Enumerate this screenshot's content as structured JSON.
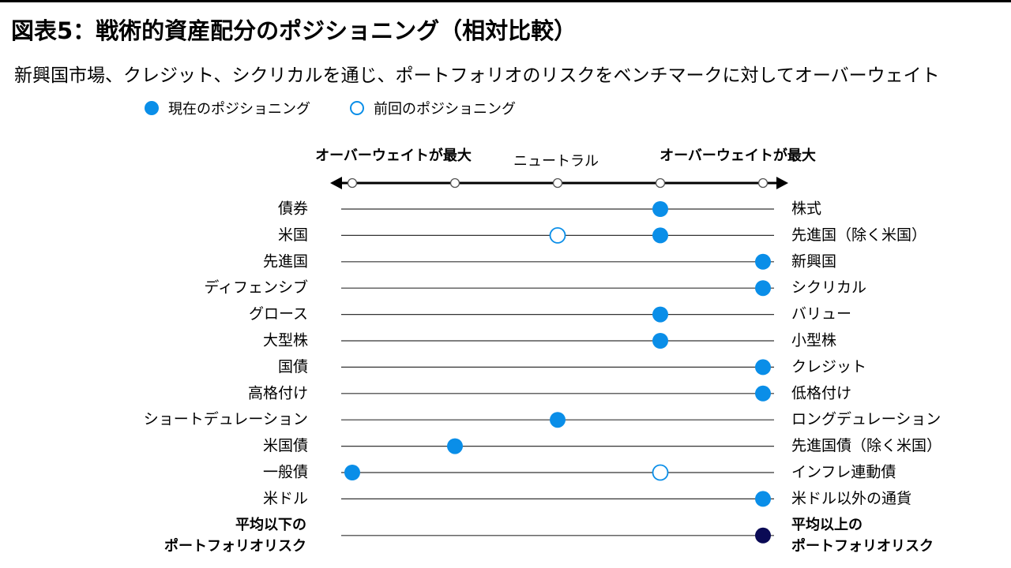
{
  "title": "図表5：戦術的資産配分のポジショニング（相対比較）",
  "subtitle": "新興国市場、クレジット、シクリカルを通じ、ポートフォリオのリスクをベンチマークに対してオーバーウェイト",
  "legend": {
    "current": "現在のポジショニング",
    "previous": "前回のポジショニング"
  },
  "colors": {
    "current": "#0a8ee8",
    "previous_stroke": "#0a8ee8",
    "previous_fill": "#ffffff",
    "risk": "#0a0a55",
    "line": "#333333"
  },
  "chart_data": {
    "type": "scatter",
    "scale_positions": [
      -2,
      -1,
      0,
      1,
      2
    ],
    "scale_labels": {
      "left": "オーバーウェイトが最大",
      "center": "ニュートラル",
      "right": "オーバーウェイトが最大"
    },
    "rows": [
      {
        "left": "債券",
        "right": "株式",
        "current": 1,
        "previous": null,
        "emphasis": false
      },
      {
        "left": "米国",
        "right": "先進国（除く米国）",
        "current": 1,
        "previous": 0,
        "emphasis": false
      },
      {
        "left": "先進国",
        "right": "新興国",
        "current": 2,
        "previous": null,
        "emphasis": false
      },
      {
        "left": "ディフェンシブ",
        "right": "シクリカル",
        "current": 2,
        "previous": null,
        "emphasis": false
      },
      {
        "left": "グロース",
        "right": "バリュー",
        "current": 1,
        "previous": null,
        "emphasis": false
      },
      {
        "left": "大型株",
        "right": "小型株",
        "current": 1,
        "previous": null,
        "emphasis": false
      },
      {
        "left": "国債",
        "right": "クレジット",
        "current": 2,
        "previous": null,
        "emphasis": false
      },
      {
        "left": "高格付け",
        "right": "低格付け",
        "current": 2,
        "previous": null,
        "emphasis": false
      },
      {
        "left": "ショートデュレーション",
        "right": "ロングデュレーション",
        "current": 0,
        "previous": null,
        "emphasis": false
      },
      {
        "left": "米国債",
        "right": "先進国債（除く米国）",
        "current": -1,
        "previous": null,
        "emphasis": false
      },
      {
        "left": "一般債",
        "right": "インフレ連動債",
        "current": -2,
        "previous": 1,
        "emphasis": false
      },
      {
        "left": "米ドル",
        "right": "米ドル以外の通貨",
        "current": 2,
        "previous": null,
        "emphasis": false
      },
      {
        "left": [
          "平均以下の",
          "ポートフォリオリスク"
        ],
        "right": [
          "平均以上の",
          "ポートフォリオリスク"
        ],
        "current": 2,
        "previous": null,
        "emphasis": true
      }
    ]
  }
}
